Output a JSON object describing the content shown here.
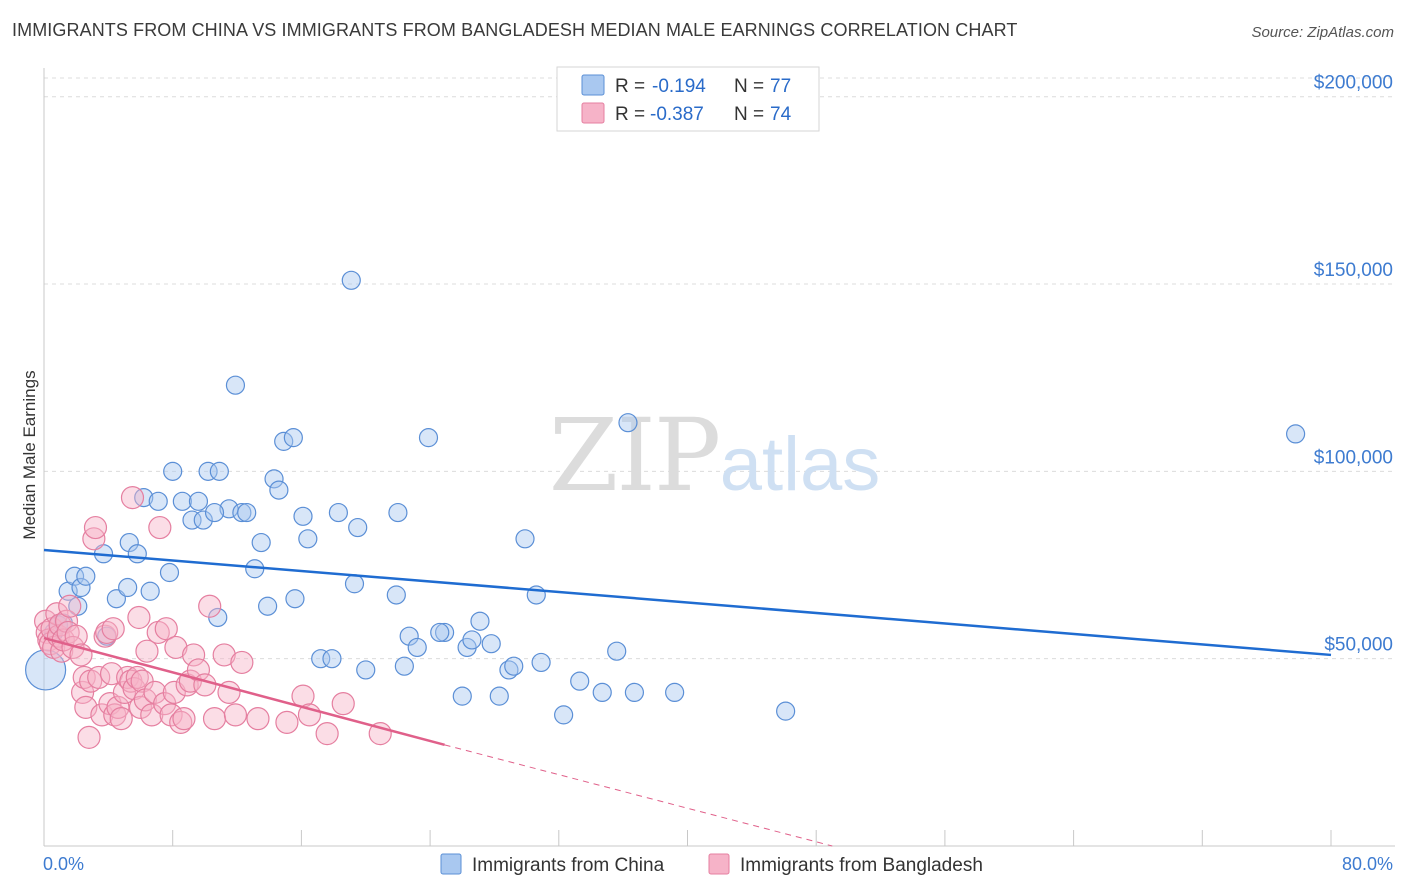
{
  "header": {
    "title": "IMMIGRANTS FROM CHINA VS IMMIGRANTS FROM BANGLADESH MEDIAN MALE EARNINGS CORRELATION CHART",
    "source": "Source: ZipAtlas.com"
  },
  "watermark": {
    "zip": "ZIP",
    "atlas": "atlas"
  },
  "colors": {
    "china_fill": "#a9c8f0",
    "china_stroke": "#5b8fd6",
    "china_line": "#1f6cd1",
    "bangladesh_fill": "#f6b3c8",
    "bangladesh_stroke": "#e57fa0",
    "bangladesh_line": "#e0608a",
    "grid": "#dcdcdc",
    "tick_label": "#3d7bd0"
  },
  "legend": {
    "rows": [
      {
        "r_label": "R =",
        "r_value": "-0.194",
        "n_label": "N =",
        "n_value": "77",
        "series": "china"
      },
      {
        "r_label": "R =",
        "r_value": "-0.387",
        "n_label": "N =",
        "n_value": "74",
        "series": "bangladesh"
      }
    ]
  },
  "chart_data": {
    "type": "scatter",
    "title": "IMMIGRANTS FROM CHINA VS IMMIGRANTS FROM BANGLADESH MEDIAN MALE EARNINGS CORRELATION CHART",
    "xlabel": "",
    "ylabel": "Median Male Earnings",
    "xlim": [
      0,
      80
    ],
    "ylim": [
      0,
      205000
    ],
    "x_tick_labels": [
      "0.0%",
      "80.0%"
    ],
    "y_ticks": [
      50000,
      100000,
      150000,
      200000
    ],
    "y_tick_labels": [
      "$50,000",
      "$100,000",
      "$150,000",
      "$200,000"
    ],
    "grid": true,
    "legend_position": "top-center",
    "series": [
      {
        "name": "Immigrants from China",
        "key": "china",
        "trend": {
          "x": [
            0,
            80
          ],
          "y": [
            79000,
            51000
          ]
        },
        "points": [
          [
            0.1,
            47000,
            20
          ],
          [
            0.6,
            57000,
            9
          ],
          [
            0.9,
            59000,
            9
          ],
          [
            1.2,
            59500,
            9
          ],
          [
            1.5,
            68000,
            9
          ],
          [
            1.9,
            72000,
            9
          ],
          [
            2.3,
            69000,
            9
          ],
          [
            2.6,
            72000,
            9
          ],
          [
            3.7,
            78000,
            9
          ],
          [
            3.9,
            56000,
            9
          ],
          [
            4.5,
            66000,
            9
          ],
          [
            5.2,
            69000,
            9
          ],
          [
            5.3,
            81000,
            9
          ],
          [
            5.8,
            78000,
            9
          ],
          [
            6.2,
            93000,
            9
          ],
          [
            6.6,
            68000,
            9
          ],
          [
            7.1,
            92000,
            9
          ],
          [
            7.8,
            73000,
            9
          ],
          [
            8.0,
            100000,
            9
          ],
          [
            8.6,
            92000,
            9
          ],
          [
            9.2,
            87000,
            9
          ],
          [
            9.6,
            92000,
            9
          ],
          [
            9.9,
            87000,
            9
          ],
          [
            10.2,
            100000,
            9
          ],
          [
            10.8,
            61000,
            9
          ],
          [
            10.9,
            100000,
            9
          ],
          [
            11.5,
            90000,
            9
          ],
          [
            11.9,
            123000,
            9
          ],
          [
            12.3,
            89000,
            9
          ],
          [
            12.6,
            89000,
            9
          ],
          [
            13.1,
            74000,
            9
          ],
          [
            13.5,
            81000,
            9
          ],
          [
            13.9,
            64000,
            9
          ],
          [
            14.3,
            98000,
            9
          ],
          [
            14.6,
            95000,
            9
          ],
          [
            14.9,
            108000,
            9
          ],
          [
            15.5,
            109000,
            9
          ],
          [
            15.6,
            66000,
            9
          ],
          [
            16.1,
            88000,
            9
          ],
          [
            16.4,
            82000,
            9
          ],
          [
            17.2,
            50000,
            9
          ],
          [
            17.9,
            50000,
            9
          ],
          [
            18.3,
            89000,
            9
          ],
          [
            19.1,
            151000,
            9
          ],
          [
            19.3,
            70000,
            9
          ],
          [
            19.5,
            85000,
            9
          ],
          [
            20.0,
            47000,
            9
          ],
          [
            21.9,
            67000,
            9
          ],
          [
            22.0,
            89000,
            9
          ],
          [
            22.4,
            48000,
            9
          ],
          [
            22.7,
            56000,
            9
          ],
          [
            23.2,
            53000,
            9
          ],
          [
            23.9,
            109000,
            9
          ],
          [
            24.9,
            57000,
            9
          ],
          [
            26.0,
            40000,
            9
          ],
          [
            26.3,
            53000,
            9
          ],
          [
            26.6,
            55000,
            9
          ],
          [
            27.1,
            60000,
            9
          ],
          [
            27.8,
            54000,
            9
          ],
          [
            28.3,
            40000,
            9
          ],
          [
            28.9,
            47000,
            9
          ],
          [
            29.2,
            48000,
            9
          ],
          [
            29.9,
            82000,
            9
          ],
          [
            30.6,
            67000,
            9
          ],
          [
            30.9,
            49000,
            9
          ],
          [
            32.3,
            35000,
            9
          ],
          [
            33.3,
            44000,
            9
          ],
          [
            34.7,
            41000,
            9
          ],
          [
            35.6,
            52000,
            9
          ],
          [
            36.3,
            113000,
            9
          ],
          [
            36.7,
            41000,
            9
          ],
          [
            39.2,
            41000,
            9
          ],
          [
            46.1,
            36000,
            9
          ],
          [
            77.8,
            110000,
            9
          ],
          [
            2.1,
            64000,
            9
          ],
          [
            10.6,
            89000,
            9
          ],
          [
            24.6,
            57000,
            9
          ]
        ]
      },
      {
        "name": "Immigrants from Bangladesh",
        "key": "bangladesh",
        "trend": {
          "x": [
            0,
            24.9
          ],
          "y": [
            55500,
            27000
          ]
        },
        "trend_dashed": {
          "x": [
            24.9,
            49
          ],
          "y": [
            27000,
            0
          ]
        },
        "points": [
          [
            0.1,
            60000,
            11
          ],
          [
            0.2,
            57000,
            11
          ],
          [
            0.3,
            55000,
            11
          ],
          [
            0.4,
            54000,
            11
          ],
          [
            0.5,
            58000,
            11
          ],
          [
            0.6,
            53000,
            11
          ],
          [
            0.8,
            62000,
            11
          ],
          [
            0.9,
            56000,
            11
          ],
          [
            1.0,
            59000,
            11
          ],
          [
            1.1,
            52000,
            11
          ],
          [
            1.2,
            55000,
            11
          ],
          [
            1.4,
            60000,
            11
          ],
          [
            1.5,
            57000,
            11
          ],
          [
            1.6,
            64000,
            11
          ],
          [
            1.8,
            53000,
            11
          ],
          [
            2.0,
            56000,
            11
          ],
          [
            2.3,
            51000,
            11
          ],
          [
            2.4,
            41000,
            11
          ],
          [
            2.5,
            45000,
            11
          ],
          [
            2.6,
            37000,
            11
          ],
          [
            2.8,
            29000,
            11
          ],
          [
            2.9,
            44000,
            11
          ],
          [
            3.1,
            82000,
            11
          ],
          [
            3.2,
            85000,
            11
          ],
          [
            3.4,
            45000,
            11
          ],
          [
            3.6,
            35000,
            11
          ],
          [
            3.8,
            56000,
            11
          ],
          [
            3.9,
            57000,
            11
          ],
          [
            4.1,
            38000,
            11
          ],
          [
            4.2,
            46000,
            11
          ],
          [
            4.3,
            58000,
            11
          ],
          [
            4.4,
            35000,
            11
          ],
          [
            4.6,
            37000,
            11
          ],
          [
            4.8,
            34000,
            11
          ],
          [
            5.0,
            41000,
            11
          ],
          [
            5.2,
            45000,
            11
          ],
          [
            5.4,
            44000,
            11
          ],
          [
            5.5,
            93000,
            11
          ],
          [
            5.6,
            42000,
            11
          ],
          [
            5.8,
            45000,
            11
          ],
          [
            5.9,
            61000,
            11
          ],
          [
            6.0,
            37000,
            11
          ],
          [
            6.1,
            44000,
            11
          ],
          [
            6.3,
            39000,
            11
          ],
          [
            6.4,
            52000,
            11
          ],
          [
            6.7,
            35000,
            11
          ],
          [
            6.9,
            41000,
            11
          ],
          [
            7.1,
            57000,
            11
          ],
          [
            7.2,
            85000,
            11
          ],
          [
            7.5,
            38000,
            11
          ],
          [
            7.6,
            58000,
            11
          ],
          [
            7.9,
            35000,
            11
          ],
          [
            8.1,
            41000,
            11
          ],
          [
            8.2,
            53000,
            11
          ],
          [
            8.5,
            33000,
            11
          ],
          [
            8.7,
            34000,
            11
          ],
          [
            8.9,
            43000,
            11
          ],
          [
            9.1,
            44000,
            11
          ],
          [
            9.3,
            51000,
            11
          ],
          [
            9.6,
            47000,
            11
          ],
          [
            10.0,
            43000,
            11
          ],
          [
            10.3,
            64000,
            11
          ],
          [
            10.6,
            34000,
            11
          ],
          [
            11.2,
            51000,
            11
          ],
          [
            11.5,
            41000,
            11
          ],
          [
            11.9,
            35000,
            11
          ],
          [
            12.3,
            49000,
            11
          ],
          [
            13.3,
            34000,
            11
          ],
          [
            15.1,
            33000,
            11
          ],
          [
            16.1,
            40000,
            11
          ],
          [
            16.5,
            35000,
            11
          ],
          [
            17.6,
            30000,
            11
          ],
          [
            18.6,
            38000,
            11
          ],
          [
            20.9,
            30000,
            11
          ]
        ]
      }
    ]
  },
  "bottom_legend": {
    "items": [
      {
        "label": "Immigrants from China",
        "series": "china"
      },
      {
        "label": "Immigrants from Bangladesh",
        "series": "bangladesh"
      }
    ]
  }
}
